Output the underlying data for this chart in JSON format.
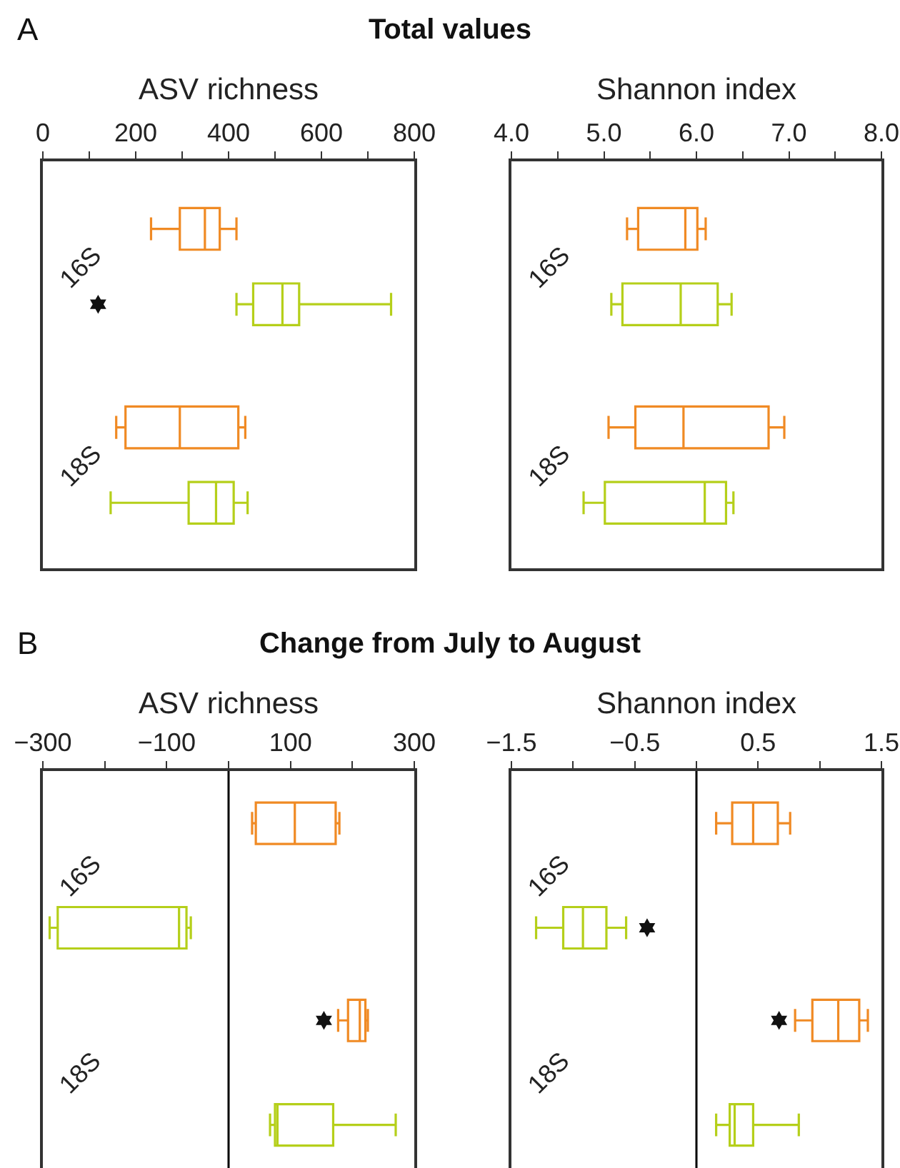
{
  "chart_data": [
    {
      "type": "box",
      "title": "ASV richness",
      "orientation": "horizontal",
      "categories": [
        "16S",
        "18S"
      ],
      "annotations": [
        "A",
        "Total values"
      ],
      "xlim": [
        0,
        800
      ],
      "xticks": [
        0,
        {
          "value": 100,
          "label": null
        },
        200,
        {
          "value": 300,
          "label": null
        },
        400,
        {
          "value": 500,
          "label": null
        },
        600,
        {
          "value": 700,
          "label": null
        },
        800
      ],
      "grid": false,
      "series": [
        {
          "color": "#f08a24",
          "boxes": [
            {
              "low": 233,
              "q1": 295,
              "median": 349,
              "q3": 381,
              "high": 417
            },
            {
              "low": 158,
              "q1": 178,
              "median": 295,
              "q3": 421,
              "high": 436
            }
          ]
        },
        {
          "color": "#b5cf1a",
          "boxes": [
            {
              "low": 417,
              "q1": 453,
              "median": 516,
              "q3": 552,
              "high": 750,
              "outliers": [
                119
              ]
            },
            {
              "low": 146,
              "q1": 314,
              "median": 373,
              "q3": 411,
              "high": 441
            }
          ]
        }
      ]
    },
    {
      "type": "box",
      "title": "Shannon index",
      "orientation": "horizontal",
      "categories": [
        "16S",
        "18S"
      ],
      "xlim": [
        4,
        8
      ],
      "xticks": [
        {
          "value": 4,
          "label": "4.0"
        },
        {
          "value": 4.5,
          "label": null
        },
        {
          "value": 5,
          "label": "5.0"
        },
        {
          "value": 5.5,
          "label": null
        },
        {
          "value": 6,
          "label": "6.0"
        },
        {
          "value": 6.5,
          "label": null
        },
        {
          "value": 7,
          "label": "7.0"
        },
        {
          "value": 7.5,
          "label": null
        },
        {
          "value": 8,
          "label": "8.0"
        }
      ],
      "grid": false,
      "series": [
        {
          "color": "#f08a24",
          "boxes": [
            {
              "low": 5.25,
              "q1": 5.37,
              "median": 5.88,
              "q3": 6.01,
              "high": 6.1
            },
            {
              "low": 5.05,
              "q1": 5.34,
              "median": 5.86,
              "q3": 6.78,
              "high": 6.95
            }
          ]
        },
        {
          "color": "#b5cf1a",
          "boxes": [
            {
              "low": 5.08,
              "q1": 5.2,
              "median": 5.83,
              "q3": 6.23,
              "high": 6.38
            },
            {
              "low": 4.78,
              "q1": 5.01,
              "median": 6.09,
              "q3": 6.32,
              "high": 6.4
            }
          ]
        }
      ]
    },
    {
      "type": "box",
      "title": "ASV richness",
      "orientation": "horizontal",
      "categories": [
        "16S",
        "18S"
      ],
      "annotations": [
        "B",
        "Change from July to August"
      ],
      "xlim": [
        -300,
        300
      ],
      "xticks": [
        {
          "value": -300,
          "label": "−300"
        },
        {
          "value": -200,
          "label": null
        },
        {
          "value": -100,
          "label": "−100"
        },
        {
          "value": 0,
          "label": null
        },
        100,
        {
          "value": 200,
          "label": null
        },
        300
      ],
      "grid": false,
      "ref_lines": [
        {
          "axis": "x",
          "value": 0,
          "color": "#000000"
        }
      ],
      "series": [
        {
          "color": "#f08a24",
          "boxes": [
            {
              "low": 38,
              "q1": 44,
              "median": 107,
              "q3": 173,
              "high": 179
            },
            {
              "low": 177,
              "q1": 193,
              "median": 212,
              "q3": 221,
              "high": 225,
              "outliers": [
                154
              ]
            }
          ]
        },
        {
          "color": "#b5cf1a",
          "boxes": [
            {
              "low": -289,
              "q1": -276,
              "median": -80,
              "q3": -68,
              "high": -61
            },
            {
              "low": 67,
              "q1": 75,
              "median": 79,
              "q3": 169,
              "high": 270
            }
          ]
        }
      ]
    },
    {
      "type": "box",
      "title": "Shannon index",
      "orientation": "horizontal",
      "categories": [
        "16S",
        "18S"
      ],
      "xlim": [
        -1.5,
        1.5
      ],
      "xticks": [
        {
          "value": -1.5,
          "label": "−1.5"
        },
        {
          "value": -1,
          "label": null
        },
        {
          "value": -0.5,
          "label": "−0.5"
        },
        {
          "value": 0,
          "label": null
        },
        0.5,
        {
          "value": 1,
          "label": null
        },
        1.5
      ],
      "grid": false,
      "ref_lines": [
        {
          "axis": "x",
          "value": 0,
          "color": "#000000"
        }
      ],
      "series": [
        {
          "color": "#f08a24",
          "boxes": [
            {
              "low": 0.16,
              "q1": 0.29,
              "median": 0.46,
              "q3": 0.66,
              "high": 0.76
            },
            {
              "low": 0.8,
              "q1": 0.94,
              "median": 1.15,
              "q3": 1.32,
              "high": 1.39,
              "outliers": [
                0.67
              ]
            }
          ]
        },
        {
          "color": "#b5cf1a",
          "boxes": [
            {
              "low": -1.3,
              "q1": -1.08,
              "median": -0.92,
              "q3": -0.73,
              "high": -0.57,
              "outliers": [
                -0.4
              ]
            },
            {
              "low": 0.16,
              "q1": 0.27,
              "median": 0.31,
              "q3": 0.46,
              "high": 0.83
            }
          ]
        }
      ]
    }
  ]
}
